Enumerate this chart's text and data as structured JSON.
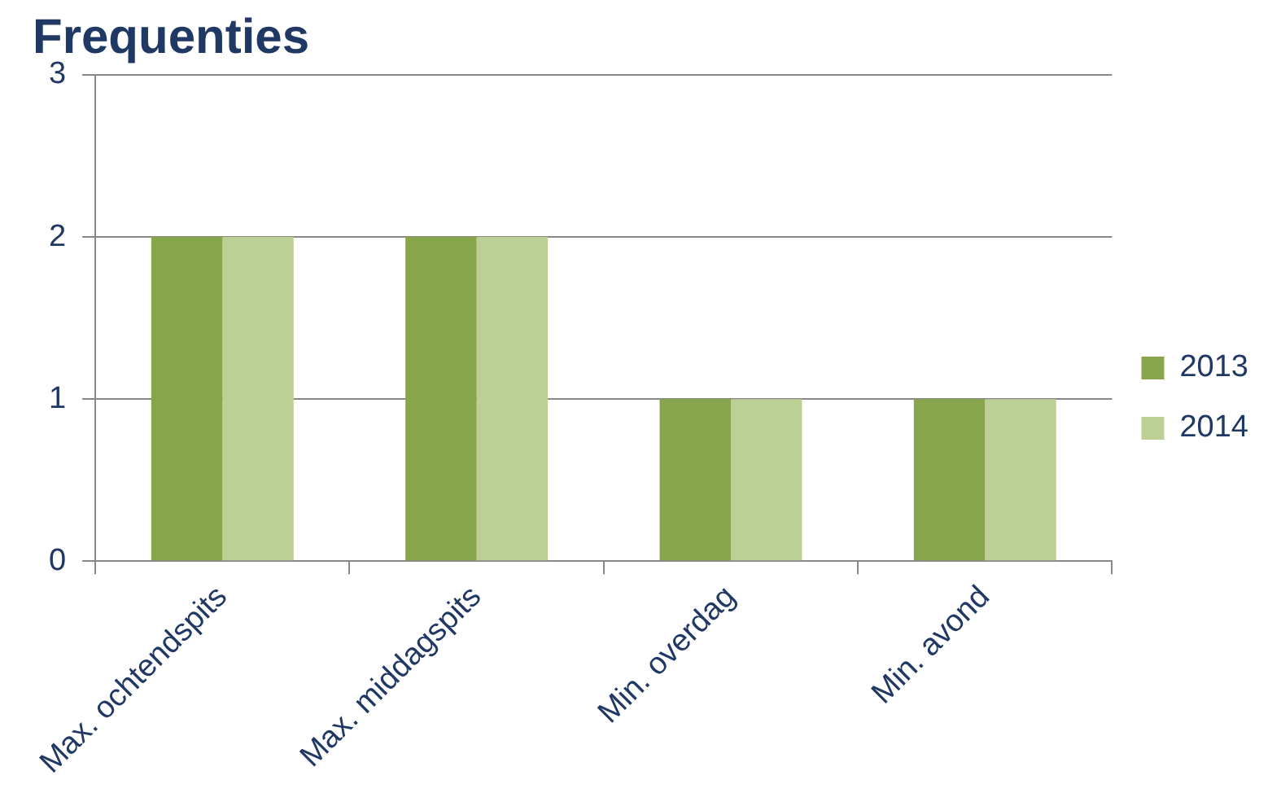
{
  "chart_data": {
    "type": "bar",
    "title": "Frequenties",
    "categories": [
      "Max. ochtendspits",
      "Max. middagspits",
      "Min. overdag",
      "Min. avond"
    ],
    "series": [
      {
        "name": "2013",
        "color": "#87a54b",
        "values": [
          2,
          2,
          1,
          1
        ]
      },
      {
        "name": "2014",
        "color": "#bccf95",
        "values": [
          2,
          2,
          1,
          1
        ]
      }
    ],
    "ylim": [
      0,
      3
    ],
    "yticks": [
      0,
      1,
      2,
      3
    ],
    "grid": "y",
    "legend": "right"
  }
}
